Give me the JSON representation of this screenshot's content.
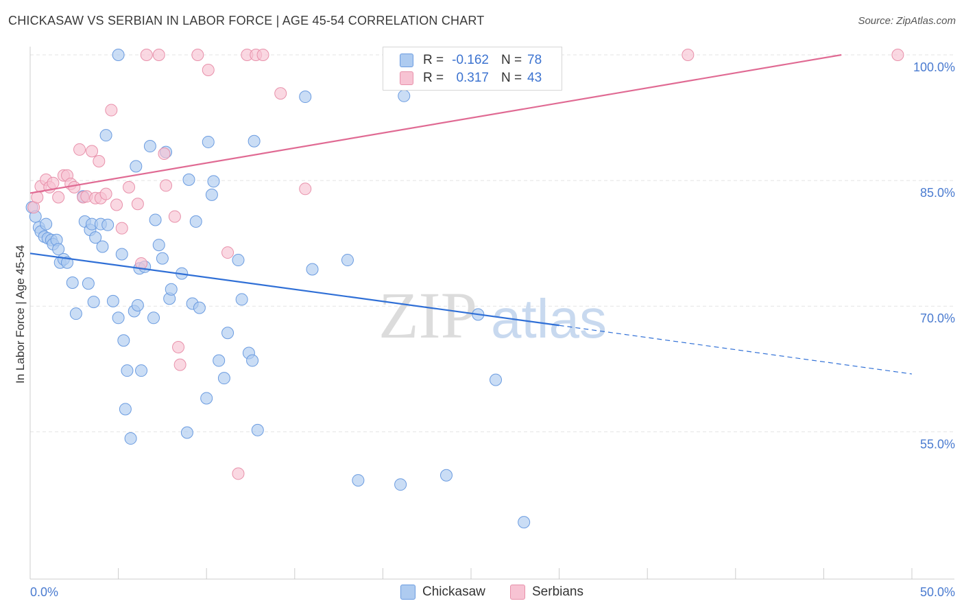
{
  "title": "CHICKASAW VS SERBIAN IN LABOR FORCE | AGE 45-54 CORRELATION CHART",
  "source": "Source: ZipAtlas.com",
  "watermark": {
    "zip": "ZIP",
    "atlas": "atlas"
  },
  "legend": {
    "rows": [
      {
        "r_label": "R =",
        "r_value": "-0.162",
        "n_label": "N =",
        "n_value": "78"
      },
      {
        "r_label": "R =",
        "r_value": "0.317",
        "n_label": "N =",
        "n_value": "43"
      }
    ]
  },
  "bottom_legend": {
    "chickasaw": "Chickasaw",
    "serbians": "Serbians"
  },
  "colors": {
    "chickasaw_fill": "#aecbf0",
    "chickasaw_stroke": "#6a9be0",
    "chickasaw_line": "#2f6fd6",
    "serbians_fill": "#f7c3d3",
    "serbians_stroke": "#e890aa",
    "serbians_line": "#e06a93",
    "tick_text": "#4a7bd0"
  },
  "chart_data": {
    "type": "scatter",
    "title": "CHICKASAW VS SERBIAN IN LABOR FORCE | AGE 45-54 CORRELATION CHART",
    "xlabel": "",
    "ylabel": "In Labor Force | Age 45-54",
    "xlim": [
      0,
      50
    ],
    "ylim": [
      42,
      100
    ],
    "x_tick_labels": [
      "0.0%",
      "50.0%"
    ],
    "y_ticks": [
      100,
      85,
      70,
      55
    ],
    "y_tick_labels": [
      "100.0%",
      "85.0%",
      "70.0%",
      "55.0%"
    ],
    "grid": true,
    "legend_position": "top-center",
    "series": [
      {
        "name": "Chickasaw",
        "points": [
          [
            0.1,
            81.8
          ],
          [
            0.3,
            80.7
          ],
          [
            0.5,
            79.4
          ],
          [
            0.6,
            78.9
          ],
          [
            0.8,
            78.3
          ],
          [
            0.9,
            79.8
          ],
          [
            1.0,
            78.1
          ],
          [
            1.2,
            77.9
          ],
          [
            1.3,
            77.4
          ],
          [
            1.5,
            77.9
          ],
          [
            1.6,
            76.8
          ],
          [
            1.7,
            75.2
          ],
          [
            1.9,
            75.6
          ],
          [
            2.1,
            75.2
          ],
          [
            2.4,
            72.8
          ],
          [
            2.6,
            69.1
          ],
          [
            3.0,
            83.1
          ],
          [
            3.1,
            80.1
          ],
          [
            3.3,
            72.7
          ],
          [
            3.4,
            79.1
          ],
          [
            3.5,
            79.8
          ],
          [
            3.6,
            70.5
          ],
          [
            3.7,
            78.2
          ],
          [
            4.0,
            79.8
          ],
          [
            4.1,
            77.1
          ],
          [
            4.3,
            90.4
          ],
          [
            4.4,
            79.7
          ],
          [
            4.7,
            70.6
          ],
          [
            5.0,
            100.0
          ],
          [
            5.0,
            68.6
          ],
          [
            5.2,
            76.2
          ],
          [
            5.5,
            62.3
          ],
          [
            5.3,
            65.9
          ],
          [
            5.4,
            57.7
          ],
          [
            5.7,
            54.2
          ],
          [
            5.9,
            69.4
          ],
          [
            6.0,
            86.7
          ],
          [
            6.1,
            70.1
          ],
          [
            6.2,
            74.5
          ],
          [
            6.3,
            62.3
          ],
          [
            6.5,
            74.7
          ],
          [
            6.8,
            89.1
          ],
          [
            7.0,
            68.6
          ],
          [
            7.1,
            80.3
          ],
          [
            7.3,
            77.3
          ],
          [
            7.5,
            75.7
          ],
          [
            7.7,
            88.4
          ],
          [
            7.9,
            70.9
          ],
          [
            8.0,
            72.0
          ],
          [
            8.6,
            73.9
          ],
          [
            8.9,
            54.9
          ],
          [
            9.0,
            85.1
          ],
          [
            9.2,
            70.3
          ],
          [
            9.4,
            80.1
          ],
          [
            9.6,
            69.8
          ],
          [
            10.0,
            59.0
          ],
          [
            10.1,
            89.6
          ],
          [
            10.3,
            83.3
          ],
          [
            10.4,
            84.9
          ],
          [
            10.7,
            63.5
          ],
          [
            11.0,
            61.4
          ],
          [
            11.2,
            66.8
          ],
          [
            11.8,
            75.5
          ],
          [
            12.0,
            70.8
          ],
          [
            12.4,
            64.4
          ],
          [
            12.6,
            63.5
          ],
          [
            12.7,
            89.7
          ],
          [
            12.9,
            55.2
          ],
          [
            15.6,
            95.0
          ],
          [
            16.0,
            74.4
          ],
          [
            18.0,
            75.5
          ],
          [
            18.6,
            49.2
          ],
          [
            21.0,
            48.7
          ],
          [
            21.2,
            95.1
          ],
          [
            23.6,
            49.8
          ],
          [
            25.4,
            69.0
          ],
          [
            26.4,
            61.2
          ],
          [
            28.0,
            44.2
          ]
        ]
      },
      {
        "name": "Serbians",
        "points": [
          [
            0.2,
            81.8
          ],
          [
            0.4,
            83.0
          ],
          [
            0.6,
            84.3
          ],
          [
            0.9,
            85.1
          ],
          [
            1.1,
            84.2
          ],
          [
            1.3,
            84.7
          ],
          [
            1.6,
            83.0
          ],
          [
            1.9,
            85.6
          ],
          [
            2.1,
            85.6
          ],
          [
            2.3,
            84.6
          ],
          [
            2.5,
            84.2
          ],
          [
            2.8,
            88.7
          ],
          [
            3.0,
            83.0
          ],
          [
            3.2,
            83.1
          ],
          [
            3.5,
            88.5
          ],
          [
            3.7,
            82.9
          ],
          [
            3.9,
            87.3
          ],
          [
            4.0,
            82.9
          ],
          [
            4.3,
            83.4
          ],
          [
            4.6,
            93.4
          ],
          [
            4.9,
            82.1
          ],
          [
            5.2,
            79.3
          ],
          [
            5.6,
            84.2
          ],
          [
            6.1,
            82.2
          ],
          [
            6.3,
            75.1
          ],
          [
            6.6,
            100.0
          ],
          [
            7.3,
            100.0
          ],
          [
            7.6,
            88.2
          ],
          [
            7.7,
            84.4
          ],
          [
            8.2,
            80.7
          ],
          [
            8.4,
            65.1
          ],
          [
            8.5,
            63.0
          ],
          [
            9.5,
            100.0
          ],
          [
            10.1,
            98.2
          ],
          [
            11.2,
            76.4
          ],
          [
            11.8,
            50.0
          ],
          [
            12.3,
            100.0
          ],
          [
            12.8,
            100.0
          ],
          [
            13.2,
            100.0
          ],
          [
            14.2,
            95.4
          ],
          [
            15.6,
            84.0
          ],
          [
            37.3,
            100.0
          ],
          [
            49.2,
            100.0
          ]
        ]
      }
    ],
    "trendlines": [
      {
        "series": "Chickasaw",
        "x": [
          0,
          30
        ],
        "y": [
          76.3,
          67.7
        ],
        "dashed_to": [
          50,
          61.9
        ]
      },
      {
        "series": "Serbians",
        "x": [
          0,
          46
        ],
        "y": [
          83.5,
          100.0
        ]
      }
    ]
  }
}
